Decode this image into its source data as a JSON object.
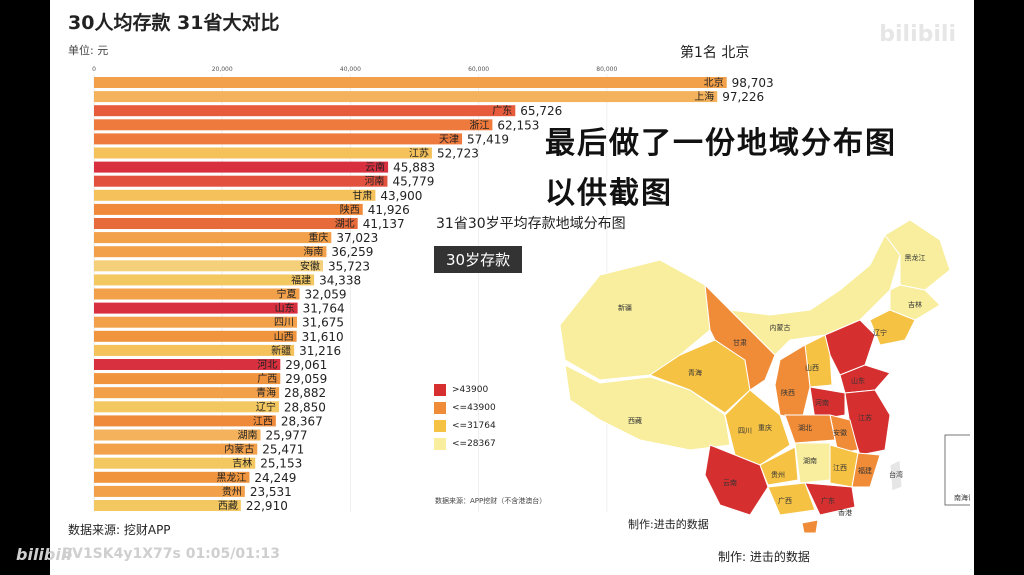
{
  "header": {
    "title": "30人均存款 31省大对比",
    "unit": "单位: 元",
    "rank_label": "第1名 北京",
    "source": "数据来源: 挖财APP"
  },
  "overlay": {
    "line1": "最后做了一份地域分布图",
    "line2": "以供截图"
  },
  "map": {
    "title": "31省30岁平均存款地域分布图",
    "badge": "30岁存款",
    "legend": [
      {
        "label": ">43900",
        "color": "#d62f2f"
      },
      {
        "label": "<=43900",
        "color": "#f08c38"
      },
      {
        "label": "<=31764",
        "color": "#f5c244"
      },
      {
        "label": "<=28367",
        "color": "#f8ee9e"
      }
    ],
    "source": "数据来源：APP挖财（不含港澳台）",
    "maker_small": "制作:进击的数据",
    "maker_large": "制作:  进击的数据",
    "south_sea": "南海诸岛",
    "labels": [
      "新疆",
      "西藏",
      "青海",
      "甘肃",
      "内蒙古",
      "黑龙江",
      "吉林",
      "辽宁",
      "四川",
      "重庆",
      "陕西",
      "山西",
      "河南",
      "湖北",
      "湖南",
      "江西",
      "安徽",
      "江苏",
      "贵州",
      "云南",
      "广西",
      "广东",
      "福建",
      "台湾",
      "香港",
      "山东"
    ]
  },
  "player": {
    "logo": "bilibili",
    "video_info": "BV1SK4y1X77s 01:05/01:13",
    "watermark": "bilibili"
  },
  "chart_data": {
    "type": "bar",
    "orientation": "horizontal",
    "xlim": [
      0,
      100000
    ],
    "xticks": [
      "0",
      "20,000",
      "40,000",
      "60,000",
      "80,000"
    ],
    "tick_values": [
      0,
      20000,
      40000,
      60000,
      80000
    ],
    "categories": [
      "北京",
      "上海",
      "广东",
      "浙江",
      "天津",
      "江苏",
      "云南",
      "河南",
      "甘肃",
      "陕西",
      "湖北",
      "重庆",
      "海南",
      "安徽",
      "福建",
      "宁夏",
      "山东",
      "四川",
      "山西",
      "新疆",
      "河北",
      "广西",
      "青海",
      "辽宁",
      "江西",
      "湖南",
      "内蒙古",
      "吉林",
      "黑龙江",
      "贵州",
      "西藏"
    ],
    "value_labels": [
      "98,703",
      "97,226",
      "65,726",
      "62,153",
      "57,419",
      "52,723",
      "45,883",
      "45,779",
      "43,900",
      "41,926",
      "41,137",
      "37,023",
      "36,259",
      "35,723",
      "34,338",
      "32,059",
      "31,764",
      "31,675",
      "31,610",
      "31,216",
      "29,061",
      "29,059",
      "28,882",
      "28,850",
      "28,367",
      "25,977",
      "25,471",
      "25,153",
      "24,249",
      "23,531",
      "22,910"
    ],
    "values": [
      98703,
      97226,
      65726,
      62153,
      57419,
      52723,
      45883,
      45779,
      43900,
      41926,
      41137,
      37023,
      36259,
      35723,
      34338,
      32059,
      31764,
      31675,
      31610,
      31216,
      29061,
      29059,
      28882,
      28850,
      28367,
      25977,
      25471,
      25153,
      24249,
      23531,
      22910
    ],
    "colors": [
      "#f2a04a",
      "#f5b25c",
      "#e65c3d",
      "#ee7a3d",
      "#ee7a3d",
      "#f4c15b",
      "#d93040",
      "#e2503e",
      "#f4c15b",
      "#f08a3a",
      "#e76a3a",
      "#f2a04a",
      "#f2a04a",
      "#f4d07a",
      "#f4c860",
      "#f2a04a",
      "#d93040",
      "#f2a04a",
      "#f0953e",
      "#f4c15b",
      "#d93040",
      "#f0953e",
      "#f2a04a",
      "#f4c860",
      "#ef8a3a",
      "#f5b25c",
      "#f2a04a",
      "#f4c860",
      "#f0953e",
      "#f2a04a",
      "#f4c860"
    ]
  }
}
